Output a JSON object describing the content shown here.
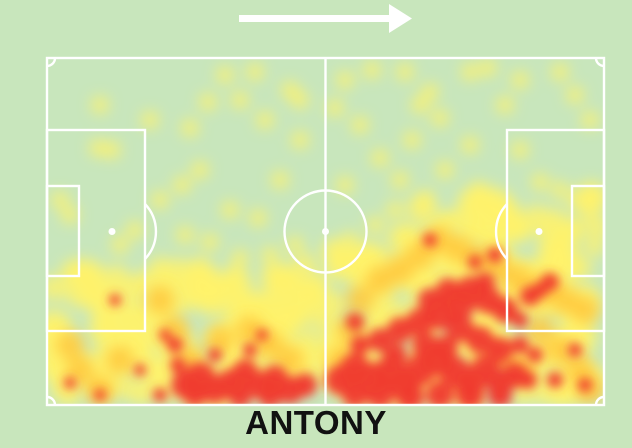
{
  "player": {
    "name": "ANTONY"
  },
  "colors": {
    "background": "#c8e6bc",
    "lines": "#ffffff",
    "heat_low": "#fff36a",
    "heat_mid": "#ffc83c",
    "heat_high": "#f03a2e"
  },
  "icons": {
    "direction": "arrow-right-icon"
  }
}
